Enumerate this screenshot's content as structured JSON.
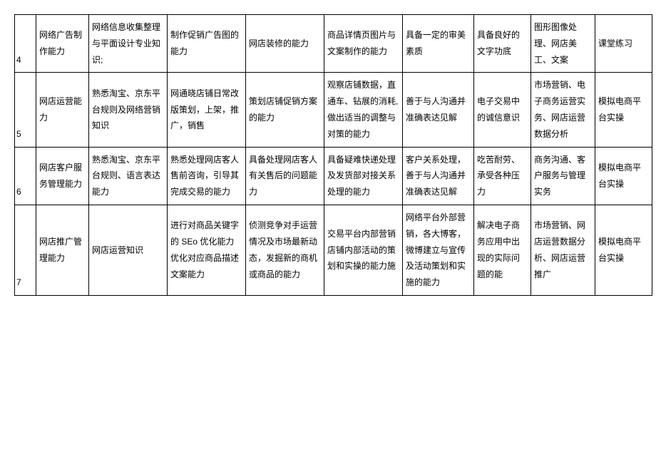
{
  "table": {
    "border_color": "#000000",
    "bg_color": "#ffffff",
    "text_color": "#000000",
    "font_size": 12,
    "rows": [
      {
        "num": "4",
        "ability": "网络广告制作能力",
        "knowledge": "网络信息收集整理与平面设计专业知识;",
        "skill1": "制作促销广告图的能力",
        "skill2": "网店装修的能力",
        "skill3": "商品详情页图片与文案制作的能力",
        "quality1": "具备一定的审美素质",
        "quality2": "具备良好的文字功底",
        "course": "图形图像处理、网店美工、文案",
        "practice": "课堂练习"
      },
      {
        "num": "5",
        "ability": "网店运营能力",
        "knowledge": "熟悉淘宝、京东平台规则及网络营销知识",
        "skill1": "网通晓店铺日常改版策划，上架，推广，销售",
        "skill2": "策划店铺促销方案的能力",
        "skill3": "观察店铺数据，直通车、钻展的消耗,做出适当的调整与对策的能力",
        "quality1": "善于与人沟通并准确表达见解",
        "quality2": "电子交易中的诚信意识",
        "course": "市场营销、电子商务运营实务、网店运营数据分析",
        "practice": "模拟电商平台实操"
      },
      {
        "num": "6",
        "ability": "网店客户服务管理能力",
        "knowledge": "熟悉淘宝、京东平台规则、语言表达能力",
        "skill1": "熟悉处理网店客人售前咨询，引导其完成交易的能力",
        "skill2": "具备处理网店客人有关售后的问题能力",
        "skill3": "具备疑难快递处理及发货部对接关系处理的能力",
        "quality1": "客户关系处理，善于与人沟通并准确表达见解",
        "quality2": "吃苦耐劳、承受各种压力",
        "course": "商务沟通、客户服务与管理实务",
        "practice": "模拟电商平台实操"
      },
      {
        "num": "7",
        "ability": "网店推广管理能力",
        "knowledge": "网店运营知识",
        "skill1": "进行对商品关键字的 SEo 优化能力优化对应商品描述文案能力",
        "skill2": "侦测竞争对手运营情况及市场最新动态，发掘新的商机或商品的能力",
        "skill3": "交易平台内部营销店铺内部活动的策划和实操的能力施",
        "quality1": "网络平台外部营销，各大博客，微博建立与宣传及活动策划和实施的能力",
        "quality2": "解决电子商务应用中出现的实际问题的能",
        "course": "市场营销、网店运营数据分析、网店运营推广",
        "practice": "模拟电商平台实操"
      }
    ]
  }
}
